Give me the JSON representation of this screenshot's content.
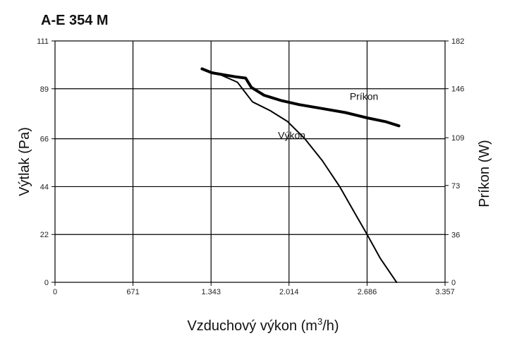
{
  "chart_data": {
    "type": "line",
    "title": "A-E 354 M",
    "xlabel": "Vzduchový výkon (m",
    "xlabel_sup": "3",
    "xlabel_tail": "/h)",
    "ylabel": "Výtlak (Pa)",
    "y2label": "Príkon (W)",
    "xlim": [
      0,
      3357
    ],
    "ylim": [
      0,
      111
    ],
    "y2lim": [
      0,
      182
    ],
    "x_ticks": [
      0,
      671,
      1343,
      2014,
      2686,
      3357
    ],
    "x_tick_labels": [
      "0",
      "671",
      "1.343",
      "2.014",
      "2.686",
      "3.357"
    ],
    "y_ticks": [
      0,
      22,
      44,
      66,
      89,
      111
    ],
    "y_tick_labels": [
      "0",
      "22",
      "44",
      "66",
      "89",
      "111"
    ],
    "y2_ticks": [
      0,
      36,
      73,
      109,
      146,
      182
    ],
    "y2_tick_labels": [
      "0",
      "36",
      "73",
      "109",
      "146",
      "182"
    ],
    "grid": true,
    "series": [
      {
        "name": "Výkon",
        "axis": "left",
        "stroke": "#000000",
        "width": 2,
        "x": [
          1265,
          1400,
          1570,
          1700,
          1850,
          2000,
          2150,
          2300,
          2450,
          2600,
          2686,
          2800,
          2940
        ],
        "y": [
          98,
          96,
          92,
          83,
          79,
          74,
          66,
          56,
          44,
          30,
          22,
          11,
          0
        ]
      },
      {
        "name": "Príkon",
        "axis": "right",
        "stroke": "#000000",
        "width": 4,
        "x": [
          1265,
          1350,
          1550,
          1640,
          1690,
          1800,
          1950,
          2100,
          2300,
          2500,
          2686,
          2850,
          2960
        ],
        "y": [
          161,
          158,
          155,
          154,
          147,
          141,
          137,
          134,
          131,
          128,
          124,
          121,
          118
        ]
      }
    ]
  }
}
